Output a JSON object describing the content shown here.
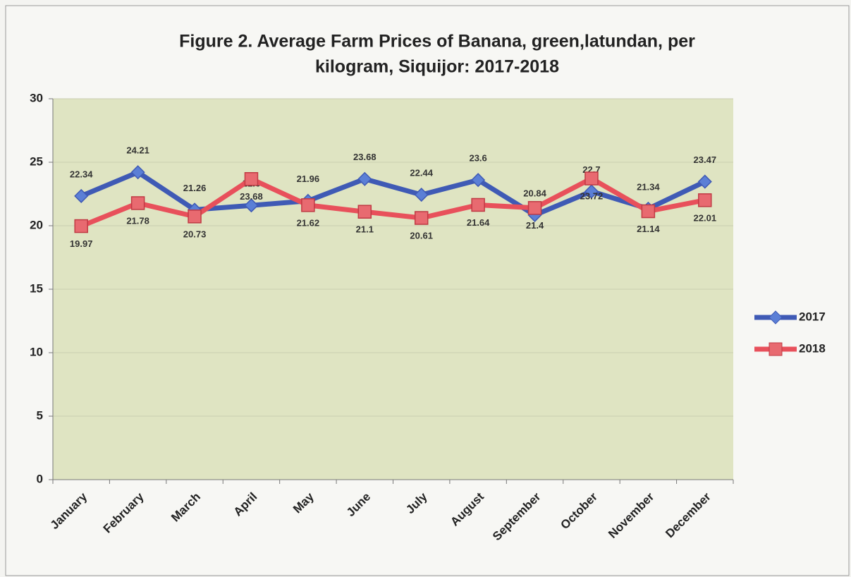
{
  "chart_data": {
    "type": "line",
    "title": "Figure 2. Average Farm Prices of Banana, green,latundan,  per",
    "subtitle": "kilogram, Siquijor: 2017-2018",
    "categories": [
      "January",
      "February",
      "March",
      "April",
      "May",
      "June",
      "July",
      "August",
      "September",
      "October",
      "November",
      "December"
    ],
    "series": [
      {
        "name": "2017",
        "color": "#3f5ab5",
        "values": [
          22.34,
          24.21,
          21.26,
          21.6,
          21.96,
          23.68,
          22.44,
          23.6,
          20.84,
          22.7,
          21.34,
          23.47
        ]
      },
      {
        "name": "2018",
        "color": "#e8505b",
        "values": [
          19.97,
          21.78,
          20.73,
          23.68,
          21.62,
          21.1,
          20.61,
          21.64,
          21.4,
          23.72,
          21.14,
          22.01
        ]
      }
    ],
    "ylim": [
      0,
      30
    ],
    "yticks": [
      0,
      5,
      10,
      15,
      20,
      25,
      30
    ],
    "grid": true,
    "legend": "right"
  }
}
